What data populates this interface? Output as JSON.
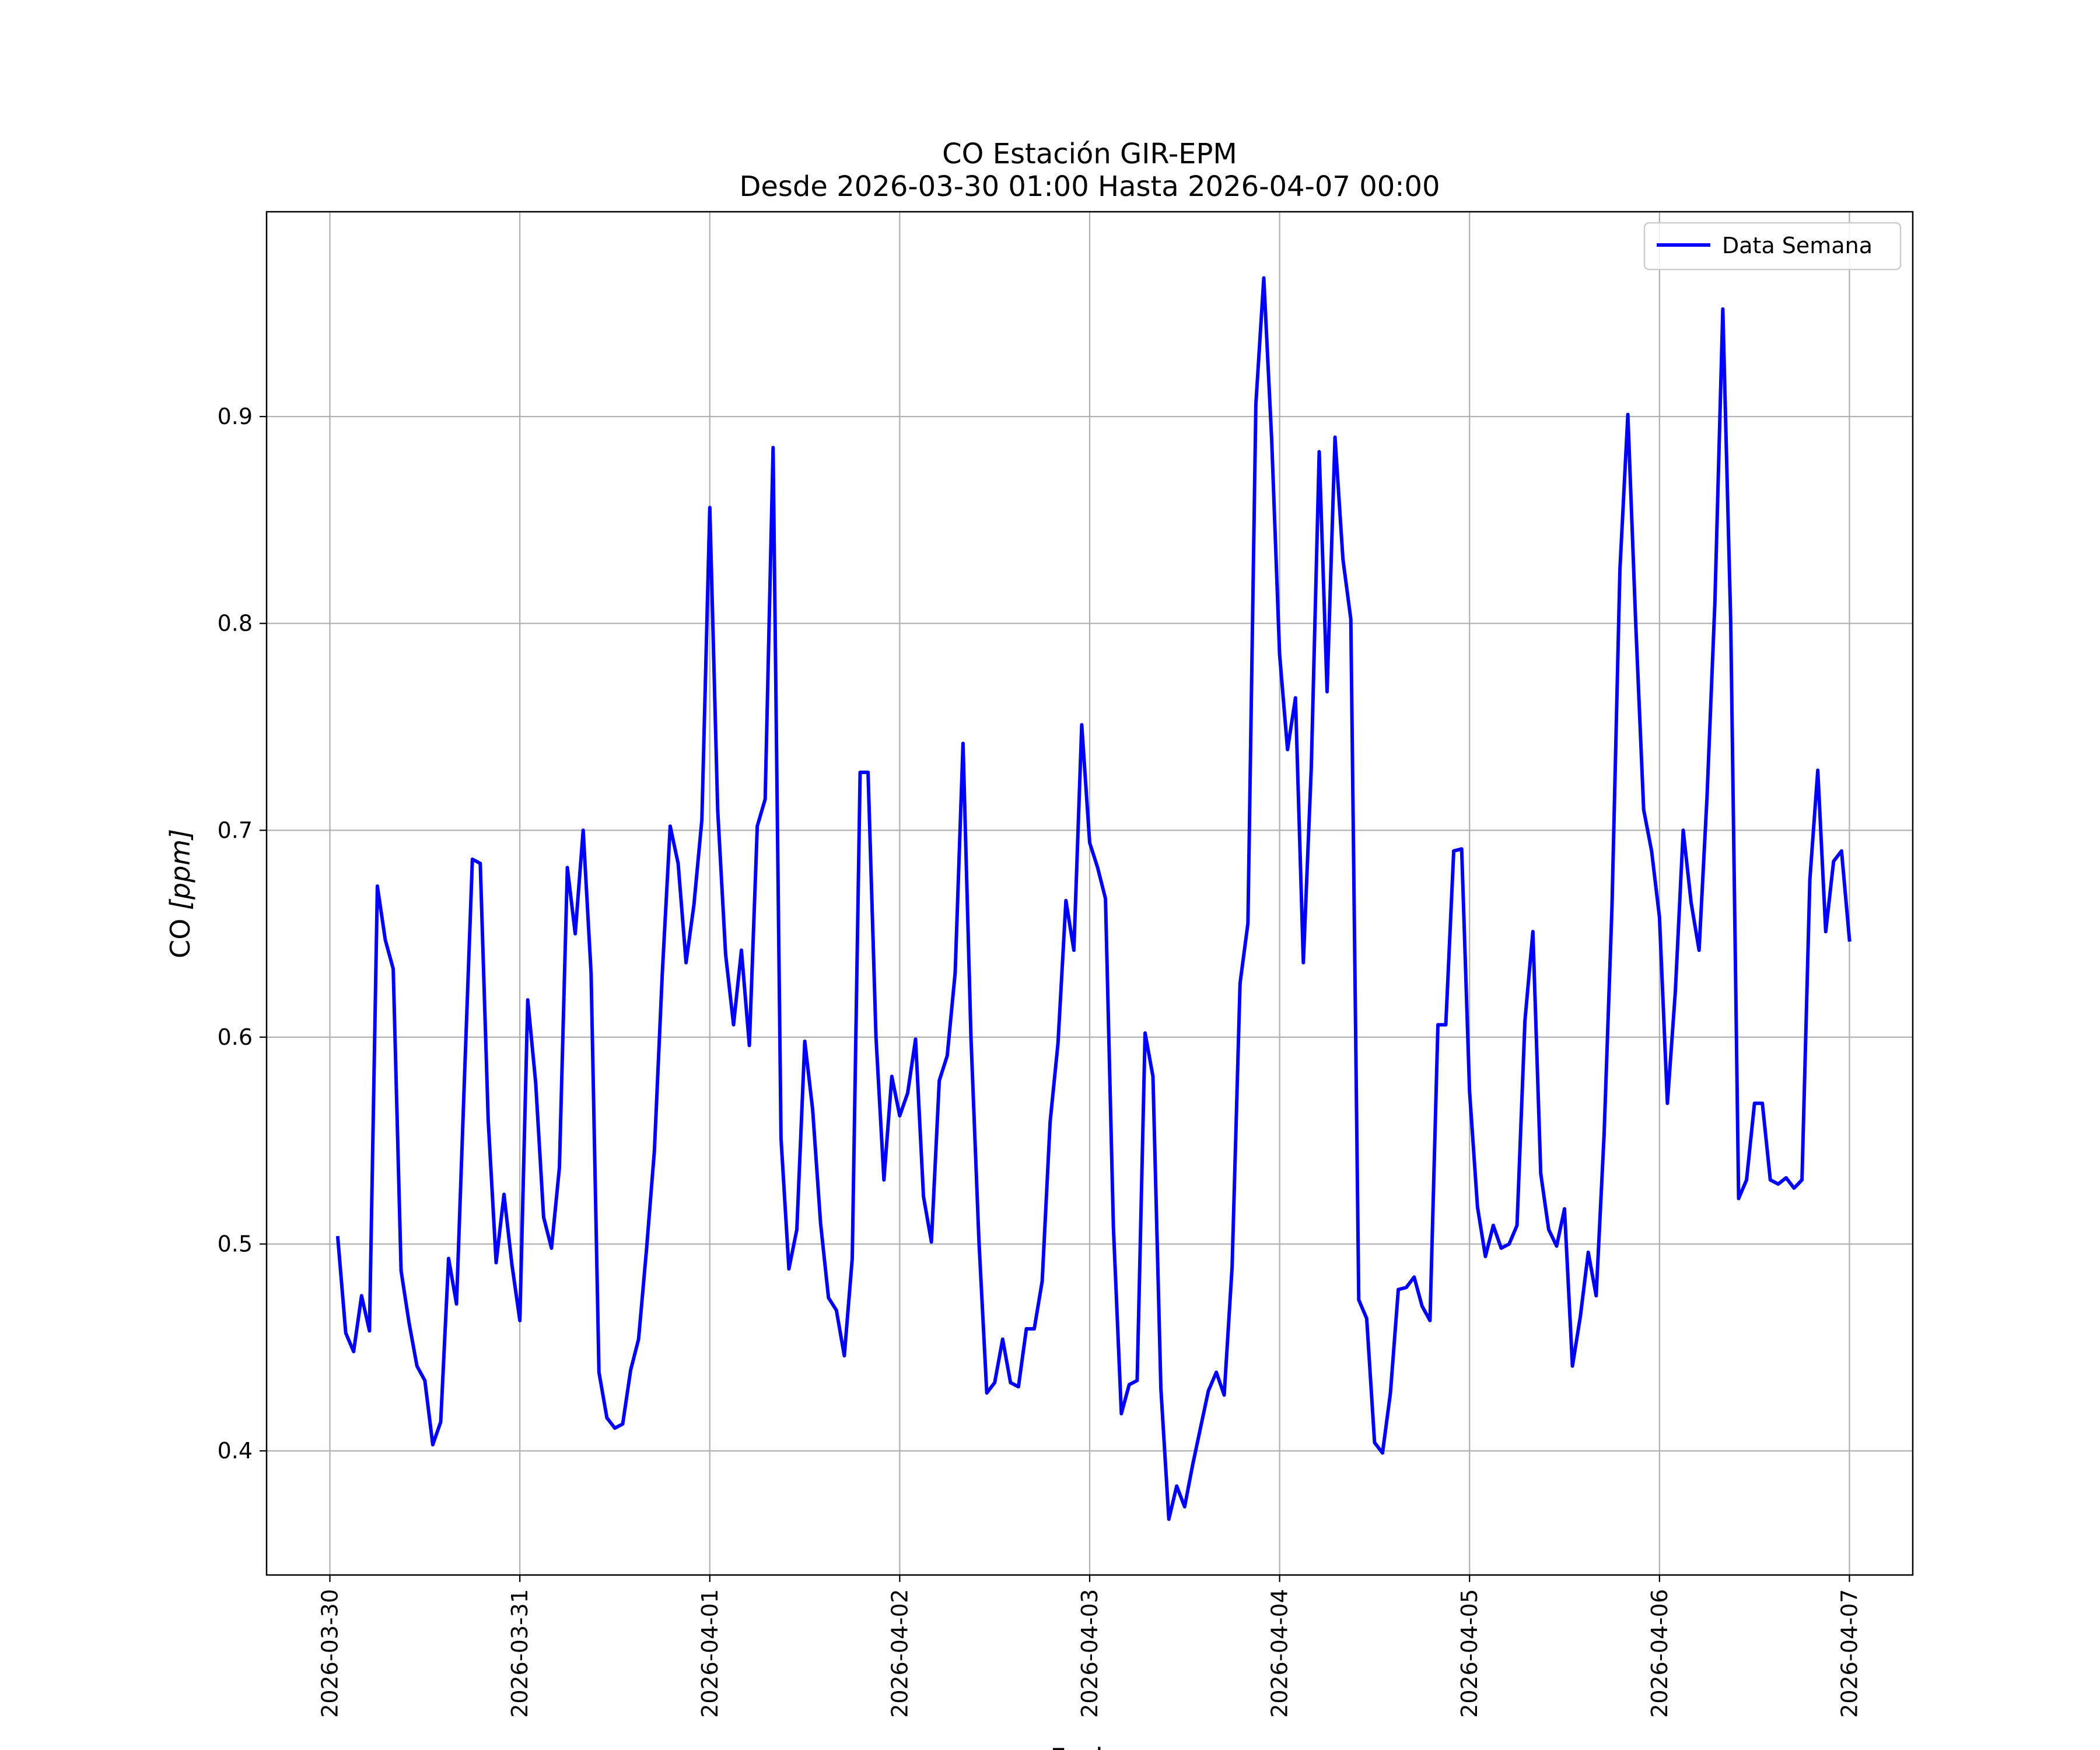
{
  "chart_data": {
    "type": "line",
    "title": "CO Estación GIR-EPM",
    "subtitle": "Desde 2026-03-30 01:00 Hasta 2026-04-07 00:00",
    "xlabel": "Fecha",
    "ylabel": {
      "prefix": "CO ",
      "unit": "[ppm]"
    },
    "xlim": [
      "2026-03-29 16:00",
      "2026-04-07 08:00"
    ],
    "ylim": [
      0.34,
      0.999
    ],
    "yticks": [
      0.4,
      0.5,
      0.6,
      0.7,
      0.8,
      0.9
    ],
    "ytick_labels": [
      "0.4",
      "0.5",
      "0.6",
      "0.7",
      "0.8",
      "0.9"
    ],
    "xticks": [
      "2026-03-30",
      "2026-03-31",
      "2026-04-01",
      "2026-04-02",
      "2026-04-03",
      "2026-04-04",
      "2026-04-05",
      "2026-04-06",
      "2026-04-07"
    ],
    "grid": true,
    "legend_position": "top-right",
    "series": [
      {
        "name": "Data Semana",
        "color": "#0000ff",
        "x": [
          "2026-03-30 01:00",
          "2026-03-30 02:00",
          "2026-03-30 03:00",
          "2026-03-30 04:00",
          "2026-03-30 05:00",
          "2026-03-30 06:00",
          "2026-03-30 07:00",
          "2026-03-30 08:00",
          "2026-03-30 09:00",
          "2026-03-30 10:00",
          "2026-03-30 11:00",
          "2026-03-30 12:00",
          "2026-03-30 13:00",
          "2026-03-30 14:00",
          "2026-03-30 15:00",
          "2026-03-30 16:00",
          "2026-03-30 17:00",
          "2026-03-30 18:00",
          "2026-03-30 19:00",
          "2026-03-30 20:00",
          "2026-03-30 21:00",
          "2026-03-30 22:00",
          "2026-03-30 23:00",
          "2026-03-31 00:00",
          "2026-03-31 01:00",
          "2026-03-31 02:00",
          "2026-03-31 03:00",
          "2026-03-31 04:00",
          "2026-03-31 05:00",
          "2026-03-31 06:00",
          "2026-03-31 07:00",
          "2026-03-31 08:00",
          "2026-03-31 09:00",
          "2026-03-31 10:00",
          "2026-03-31 11:00",
          "2026-03-31 12:00",
          "2026-03-31 13:00",
          "2026-03-31 14:00",
          "2026-03-31 15:00",
          "2026-03-31 16:00",
          "2026-03-31 17:00",
          "2026-03-31 18:00",
          "2026-03-31 19:00",
          "2026-03-31 20:00",
          "2026-03-31 21:00",
          "2026-03-31 22:00",
          "2026-03-31 23:00",
          "2026-04-01 00:00",
          "2026-04-01 01:00",
          "2026-04-01 02:00",
          "2026-04-01 03:00",
          "2026-04-01 04:00",
          "2026-04-01 05:00",
          "2026-04-01 06:00",
          "2026-04-01 07:00",
          "2026-04-01 08:00",
          "2026-04-01 09:00",
          "2026-04-01 10:00",
          "2026-04-01 11:00",
          "2026-04-01 12:00",
          "2026-04-01 13:00",
          "2026-04-01 14:00",
          "2026-04-01 15:00",
          "2026-04-01 16:00",
          "2026-04-01 17:00",
          "2026-04-01 18:00",
          "2026-04-01 19:00",
          "2026-04-01 20:00",
          "2026-04-01 21:00",
          "2026-04-01 22:00",
          "2026-04-01 23:00",
          "2026-04-02 00:00",
          "2026-04-02 01:00",
          "2026-04-02 02:00",
          "2026-04-02 03:00",
          "2026-04-02 04:00",
          "2026-04-02 05:00",
          "2026-04-02 06:00",
          "2026-04-02 07:00",
          "2026-04-02 08:00",
          "2026-04-02 09:00",
          "2026-04-02 10:00",
          "2026-04-02 11:00",
          "2026-04-02 12:00",
          "2026-04-02 13:00",
          "2026-04-02 14:00",
          "2026-04-02 15:00",
          "2026-04-02 16:00",
          "2026-04-02 17:00",
          "2026-04-02 18:00",
          "2026-04-02 19:00",
          "2026-04-02 20:00",
          "2026-04-02 21:00",
          "2026-04-02 22:00",
          "2026-04-02 23:00",
          "2026-04-03 00:00",
          "2026-04-03 01:00",
          "2026-04-03 02:00",
          "2026-04-03 03:00",
          "2026-04-03 04:00",
          "2026-04-03 05:00",
          "2026-04-03 06:00",
          "2026-04-03 07:00",
          "2026-04-03 08:00",
          "2026-04-03 09:00",
          "2026-04-03 10:00",
          "2026-04-03 11:00",
          "2026-04-03 12:00",
          "2026-04-03 13:00",
          "2026-04-03 14:00",
          "2026-04-03 15:00",
          "2026-04-03 16:00",
          "2026-04-03 17:00",
          "2026-04-03 18:00",
          "2026-04-03 19:00",
          "2026-04-03 20:00",
          "2026-04-03 21:00",
          "2026-04-03 22:00",
          "2026-04-03 23:00",
          "2026-04-04 00:00",
          "2026-04-04 01:00",
          "2026-04-04 02:00",
          "2026-04-04 03:00",
          "2026-04-04 04:00",
          "2026-04-04 05:00",
          "2026-04-04 06:00",
          "2026-04-04 07:00",
          "2026-04-04 08:00",
          "2026-04-04 09:00",
          "2026-04-04 10:00",
          "2026-04-04 11:00",
          "2026-04-04 12:00",
          "2026-04-04 13:00",
          "2026-04-04 14:00",
          "2026-04-04 15:00",
          "2026-04-04 16:00",
          "2026-04-04 17:00",
          "2026-04-04 18:00",
          "2026-04-04 19:00",
          "2026-04-04 20:00",
          "2026-04-04 21:00",
          "2026-04-04 22:00",
          "2026-04-04 23:00",
          "2026-04-05 00:00",
          "2026-04-05 01:00",
          "2026-04-05 02:00",
          "2026-04-05 03:00",
          "2026-04-05 04:00",
          "2026-04-05 05:00",
          "2026-04-05 06:00",
          "2026-04-05 07:00",
          "2026-04-05 08:00",
          "2026-04-05 09:00",
          "2026-04-05 10:00",
          "2026-04-05 11:00",
          "2026-04-05 12:00",
          "2026-04-05 13:00",
          "2026-04-05 14:00",
          "2026-04-05 15:00",
          "2026-04-05 16:00",
          "2026-04-05 17:00",
          "2026-04-05 18:00",
          "2026-04-05 19:00",
          "2026-04-05 20:00",
          "2026-04-05 21:00",
          "2026-04-05 22:00",
          "2026-04-05 23:00",
          "2026-04-06 00:00",
          "2026-04-06 01:00",
          "2026-04-06 02:00",
          "2026-04-06 03:00",
          "2026-04-06 04:00",
          "2026-04-06 05:00",
          "2026-04-06 06:00",
          "2026-04-06 07:00",
          "2026-04-06 08:00",
          "2026-04-06 09:00",
          "2026-04-06 10:00",
          "2026-04-06 11:00",
          "2026-04-06 12:00",
          "2026-04-06 13:00",
          "2026-04-06 14:00",
          "2026-04-06 15:00",
          "2026-04-06 16:00",
          "2026-04-06 17:00",
          "2026-04-06 18:00",
          "2026-04-06 19:00",
          "2026-04-06 20:00",
          "2026-04-06 21:00",
          "2026-04-06 22:00",
          "2026-04-06 23:00",
          "2026-04-07 00:00"
        ],
        "y": [
          0.503,
          0.457,
          0.448,
          0.475,
          0.458,
          0.673,
          0.647,
          0.633,
          0.487,
          0.462,
          0.441,
          0.434,
          0.403,
          0.414,
          0.493,
          0.471,
          0.58,
          0.686,
          0.684,
          0.56,
          0.491,
          0.524,
          0.49,
          0.463,
          0.618,
          0.578,
          0.513,
          0.498,
          0.537,
          0.682,
          0.65,
          0.7,
          0.631,
          0.438,
          0.416,
          0.411,
          0.413,
          0.439,
          0.454,
          0.497,
          0.545,
          0.631,
          0.702,
          0.684,
          0.636,
          0.664,
          0.705,
          0.856,
          0.71,
          0.64,
          0.606,
          0.642,
          0.596,
          0.702,
          0.715,
          0.885,
          0.551,
          0.488,
          0.507,
          0.598,
          0.565,
          0.51,
          0.474,
          0.468,
          0.446,
          0.493,
          0.728,
          0.728,
          0.6,
          0.531,
          0.581,
          0.562,
          0.573,
          0.599,
          0.523,
          0.501,
          0.579,
          0.591,
          0.631,
          0.742,
          0.6,
          0.502,
          0.428,
          0.433,
          0.454,
          0.433,
          0.431,
          0.459,
          0.459,
          0.482,
          0.559,
          0.597,
          0.666,
          0.642,
          0.751,
          0.694,
          0.682,
          0.667,
          0.508,
          0.418,
          0.432,
          0.434,
          0.602,
          0.581,
          0.43,
          0.367,
          0.383,
          0.373,
          0.393,
          0.411,
          0.429,
          0.438,
          0.427,
          0.489,
          0.626,
          0.655,
          0.906,
          0.967,
          0.889,
          0.785,
          0.739,
          0.764,
          0.636,
          0.73,
          0.883,
          0.767,
          0.89,
          0.831,
          0.802,
          0.473,
          0.464,
          0.404,
          0.399,
          0.428,
          0.478,
          0.479,
          0.484,
          0.47,
          0.463,
          0.606,
          0.606,
          0.69,
          0.691,
          0.574,
          0.518,
          0.494,
          0.509,
          0.498,
          0.5,
          0.509,
          0.608,
          0.651,
          0.534,
          0.507,
          0.499,
          0.517,
          0.441,
          0.465,
          0.496,
          0.475,
          0.553,
          0.663,
          0.826,
          0.901,
          0.8,
          0.71,
          0.69,
          0.658,
          0.568,
          0.622,
          0.7,
          0.665,
          0.642,
          0.716,
          0.81,
          0.952,
          0.8,
          0.522,
          0.531,
          0.568,
          0.568,
          0.531,
          0.529,
          0.532,
          0.527,
          0.531,
          0.676,
          0.729,
          0.651,
          0.685,
          0.69,
          0.647
        ]
      }
    ]
  }
}
